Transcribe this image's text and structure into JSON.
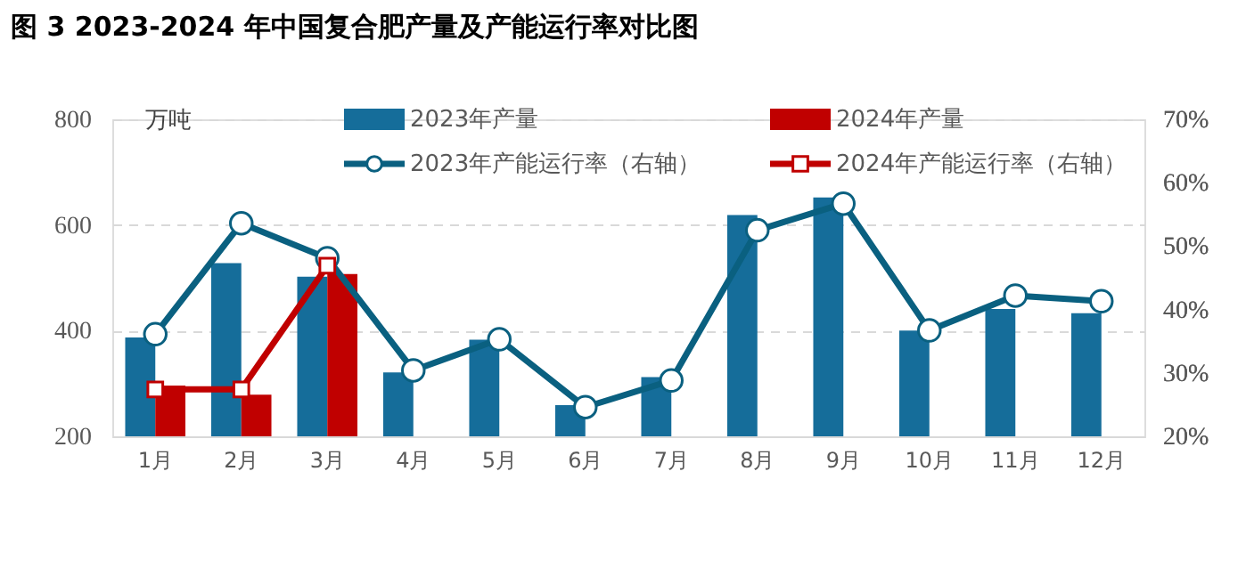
{
  "chart_data": {
    "type": "bar",
    "title": "图 3 2023-2024 年中国复合肥产量及产能运行率对比图",
    "ylabel": "万吨",
    "categories": [
      "1月",
      "2月",
      "3月",
      "4月",
      "5月",
      "6月",
      "7月",
      "8月",
      "9月",
      "10月",
      "11月",
      "12月"
    ],
    "series": [
      {
        "name": "2023年产量",
        "color": "#156d9a",
        "values": [
          387,
          528,
          502,
          321,
          383,
          259,
          312,
          619,
          652,
          400,
          441,
          433
        ]
      },
      {
        "name": "2024年产量",
        "color": "#c00000",
        "values": [
          296,
          279,
          507,
          null,
          null,
          null,
          null,
          null,
          null,
          null,
          null,
          null
        ]
      },
      {
        "name": "2023年产能运行率（右轴）",
        "type": "line",
        "axis": "y2",
        "marker": "circle",
        "color": "#0a6080",
        "values": [
          36.1,
          53.6,
          48.1,
          30.4,
          35.3,
          24.6,
          28.8,
          52.5,
          56.7,
          36.7,
          42.2,
          41.3
        ]
      },
      {
        "name": "2024年产能运行率（右轴）",
        "type": "line",
        "axis": "y2",
        "marker": "square",
        "color": "#c00000",
        "values": [
          27.4,
          27.4,
          46.9,
          null,
          null,
          null,
          null,
          null,
          null,
          null,
          null,
          null
        ]
      }
    ],
    "ylim": [
      200,
      800
    ],
    "yticks": [
      200,
      400,
      600,
      800
    ],
    "y2lim": [
      20,
      70
    ],
    "y2ticks": [
      {
        "value": 20,
        "label": "20%"
      },
      {
        "value": 30,
        "label": "30%"
      },
      {
        "value": 40,
        "label": "40%"
      },
      {
        "value": 50,
        "label": "50%"
      },
      {
        "value": 60,
        "label": "60%"
      },
      {
        "value": 70,
        "label": "70%"
      }
    ],
    "grid": "y",
    "legend": "top",
    "line_style": "solid"
  }
}
